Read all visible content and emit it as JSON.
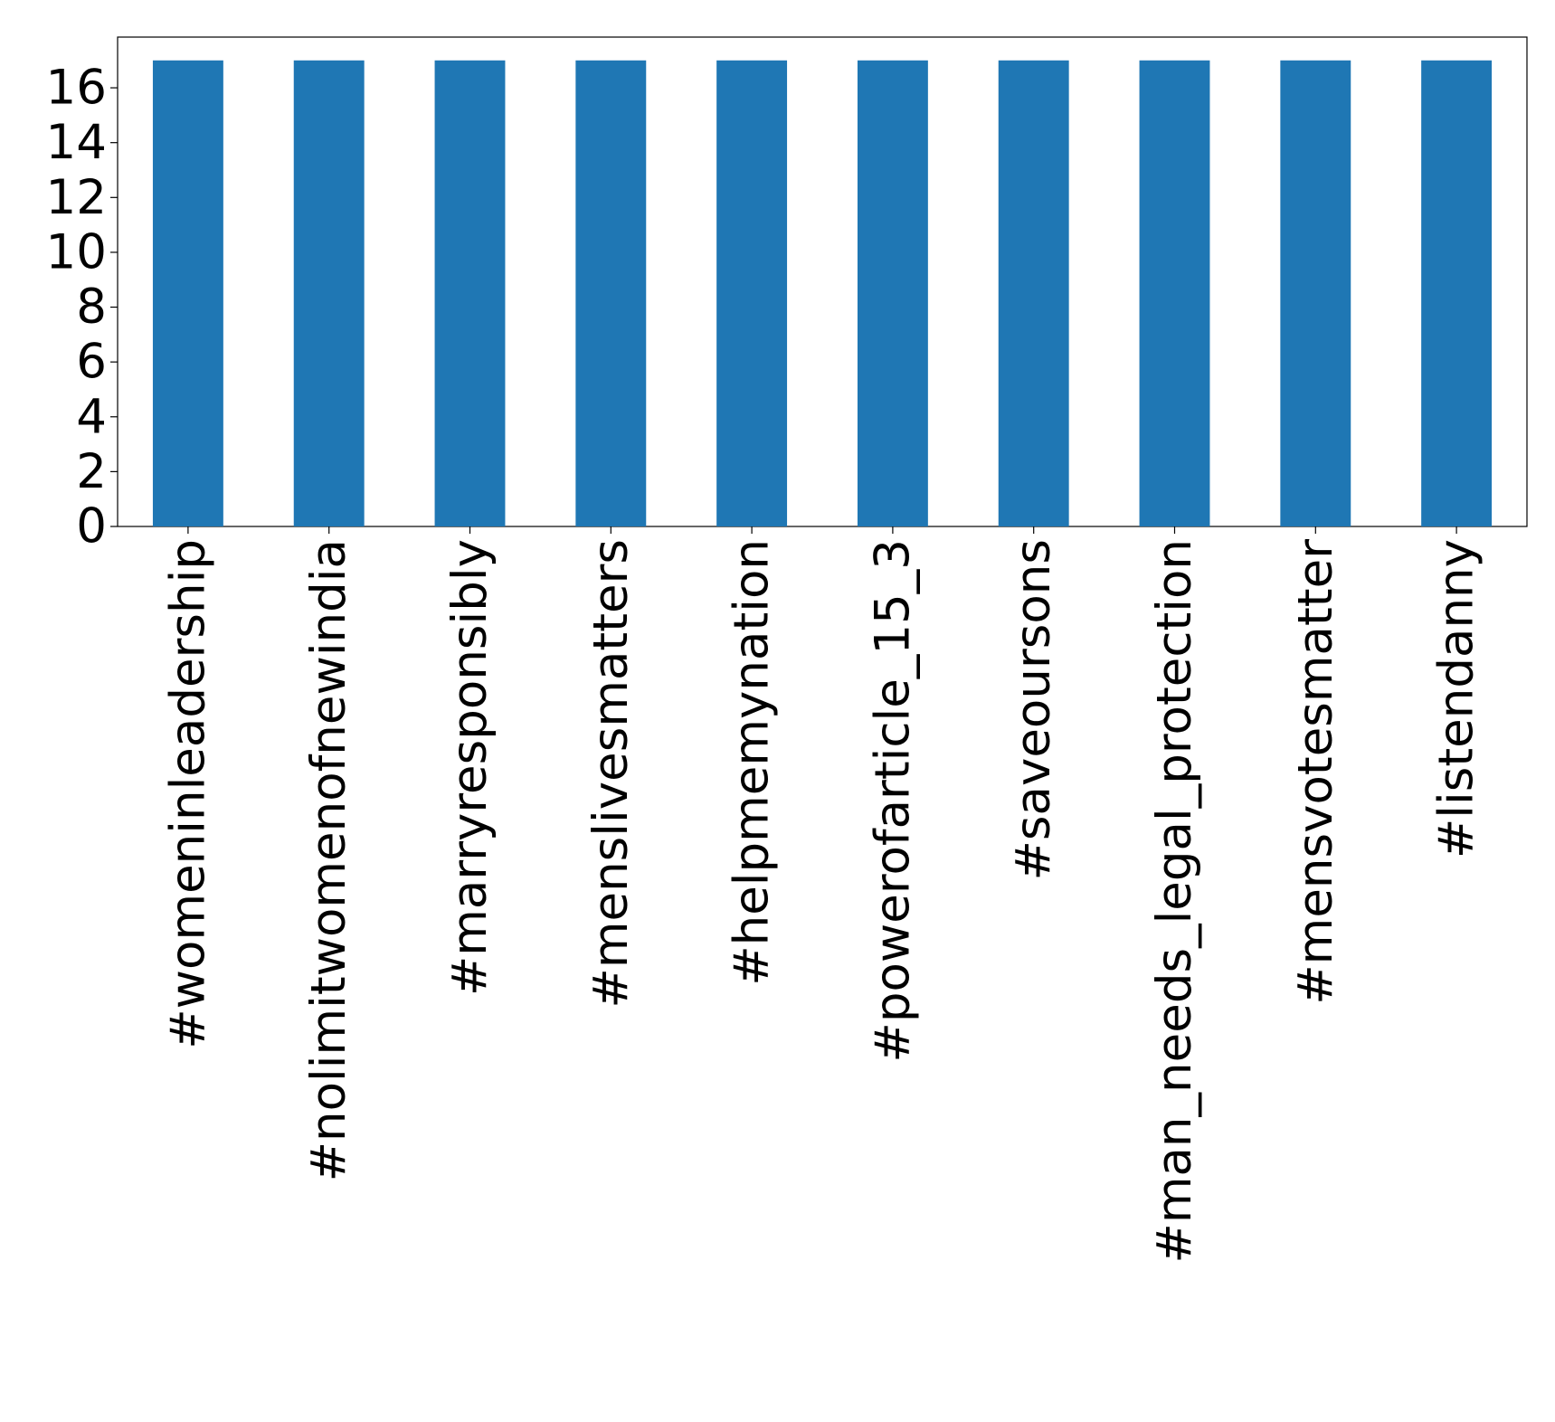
{
  "chart_data": {
    "type": "bar",
    "categories": [
      "#womeninleadership",
      "#nolimitwomenofnewindia",
      "#marryresponsibly",
      "#menslivesmatters",
      "#helpmemynation",
      "#powerofarticle_15_3",
      "#saveoursons",
      "#man_needs_legal_protection",
      "#mensvotesmatter",
      "#listendanny"
    ],
    "values": [
      17,
      17,
      17,
      17,
      17,
      17,
      17,
      17,
      17,
      17
    ],
    "color": "#1f77b4",
    "ylim": [
      0,
      17.85
    ],
    "yticks": [
      0,
      2,
      4,
      6,
      8,
      10,
      12,
      14,
      16
    ],
    "grid": false
  }
}
